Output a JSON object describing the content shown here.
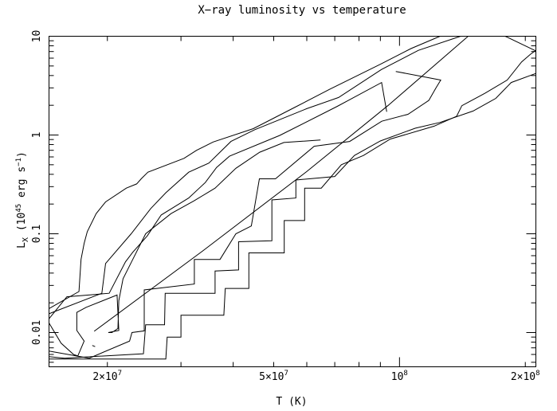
{
  "chart_data": {
    "type": "line",
    "title": "X−ray luminosity vs temperature",
    "xlabel": "T (K)",
    "ylabel": {
      "base": "L",
      "subscript": "X",
      "open": " (10",
      "exp": "45",
      "unit": " erg s",
      "unit_exp": "−1",
      "close": ")"
    },
    "xscale": "log",
    "yscale": "log",
    "xlim": [
      14500000,
      212000000
    ],
    "ylim": [
      0.0045,
      10
    ],
    "x_ticks": [
      {
        "value": 20000000,
        "mantissa": "2×10",
        "exp": "7"
      },
      {
        "value": 50000000,
        "mantissa": "5×10",
        "exp": "7"
      },
      {
        "value": 100000000,
        "mantissa": "10",
        "exp": "8"
      },
      {
        "value": 200000000,
        "mantissa": "2×10",
        "exp": "8"
      }
    ],
    "y_ticks": [
      {
        "value": 0.01,
        "label": "0.01"
      },
      {
        "value": 0.1,
        "label": "0.1"
      },
      {
        "value": 1,
        "label": "1"
      },
      {
        "value": 10,
        "label": "10"
      }
    ],
    "grid": false,
    "legend": "none",
    "series": [
      {
        "points": [
          [
            14500000,
            0.0175
          ],
          [
            17100000,
            0.026
          ],
          [
            17300000,
            0.055
          ],
          [
            17600000,
            0.08
          ],
          [
            17900000,
            0.105
          ],
          [
            18800000,
            0.16
          ],
          [
            19800000,
            0.21
          ],
          [
            22200000,
            0.29
          ],
          [
            23500000,
            0.32
          ],
          [
            24100000,
            0.36
          ],
          [
            25000000,
            0.42
          ],
          [
            30500000,
            0.58
          ],
          [
            32700000,
            0.7
          ],
          [
            35800000,
            0.85
          ],
          [
            44700000,
            1.16
          ],
          [
            55800000,
            1.88
          ],
          [
            68000000,
            2.9
          ],
          [
            90000000,
            5.2
          ],
          [
            106500000,
            7.5
          ],
          [
            125000000,
            10
          ]
        ]
      },
      {
        "points": [
          [
            14500000,
            0.0155
          ],
          [
            19400000,
            0.025
          ],
          [
            19800000,
            0.05
          ],
          [
            22800000,
            0.1
          ],
          [
            25400000,
            0.18
          ],
          [
            27600000,
            0.26
          ],
          [
            31300000,
            0.42
          ],
          [
            35000000,
            0.52
          ],
          [
            39500000,
            0.86
          ],
          [
            45000000,
            1.13
          ],
          [
            60000000,
            1.85
          ],
          [
            71500000,
            2.4
          ],
          [
            90500000,
            4.6
          ],
          [
            111000000,
            7.2
          ],
          [
            140000000,
            10
          ]
        ]
      },
      {
        "points": [
          [
            14500000,
            0.0138
          ],
          [
            16000000,
            0.023
          ],
          [
            20200000,
            0.025
          ],
          [
            22100000,
            0.052
          ],
          [
            23000000,
            0.065
          ],
          [
            24900000,
            0.095
          ],
          [
            26900000,
            0.155
          ],
          [
            31300000,
            0.23
          ],
          [
            34300000,
            0.33
          ],
          [
            36500000,
            0.47
          ],
          [
            39200000,
            0.61
          ],
          [
            51700000,
            0.99
          ],
          [
            71000000,
            1.95
          ],
          [
            90600000,
            3.4
          ],
          [
            93200000,
            1.72
          ]
        ]
      },
      {
        "points": [
          [
            14500000,
            0.0125
          ],
          [
            15500000,
            0.0078
          ],
          [
            16600000,
            0.006
          ],
          [
            17000000,
            0.0058
          ],
          [
            17600000,
            0.0082
          ],
          [
            16900000,
            0.0105
          ],
          [
            16900000,
            0.016
          ],
          [
            17800000,
            0.018
          ],
          [
            21100000,
            0.024
          ],
          [
            21300000,
            0.0105
          ],
          [
            20100000,
            0.01
          ],
          [
            20500000,
            0.01
          ],
          [
            21200000,
            0.011
          ],
          [
            21300000,
            0.021
          ],
          [
            21800000,
            0.035
          ],
          [
            22900000,
            0.053
          ],
          [
            24700000,
            0.1
          ],
          [
            28400000,
            0.16
          ],
          [
            32200000,
            0.215
          ],
          [
            36200000,
            0.29
          ],
          [
            40600000,
            0.46
          ],
          [
            46300000,
            0.67
          ],
          [
            52900000,
            0.84
          ],
          [
            64700000,
            0.89
          ]
        ]
      },
      {
        "points": [
          [
            14500000,
            0.0065
          ],
          [
            18100000,
            0.0055
          ],
          [
            22600000,
            0.0082
          ],
          [
            22900000,
            0.01
          ],
          [
            24500000,
            0.0104
          ],
          [
            24500000,
            0.027
          ],
          [
            32300000,
            0.031
          ],
          [
            32300000,
            0.055
          ],
          [
            37200000,
            0.055
          ],
          [
            40600000,
            0.1
          ],
          [
            44200000,
            0.12
          ],
          [
            46200000,
            0.36
          ],
          [
            50500000,
            0.36
          ],
          [
            62500000,
            0.77
          ],
          [
            76000000,
            0.86
          ],
          [
            90700000,
            1.38
          ],
          [
            104800000,
            1.62
          ],
          [
            117500000,
            2.24
          ],
          [
            122000000,
            2.95
          ],
          [
            125500000,
            3.6
          ],
          [
            98000000,
            4.4
          ]
        ]
      },
      {
        "points": [
          [
            14500000,
            0.0057
          ],
          [
            15800000,
            0.0055
          ],
          [
            24400000,
            0.0061
          ],
          [
            24700000,
            0.012
          ],
          [
            27400000,
            0.012
          ],
          [
            27500000,
            0.025
          ],
          [
            36200000,
            0.025
          ],
          [
            36200000,
            0.042
          ],
          [
            41200000,
            0.043
          ],
          [
            41200000,
            0.083
          ],
          [
            49500000,
            0.085
          ],
          [
            49500000,
            0.22
          ],
          [
            56500000,
            0.23
          ],
          [
            56500000,
            0.35
          ],
          [
            70000000,
            0.38
          ],
          [
            78000000,
            0.62
          ],
          [
            90000000,
            0.87
          ],
          [
            109000000,
            1.17
          ],
          [
            125000000,
            1.34
          ],
          [
            150000000,
            1.75
          ],
          [
            170000000,
            2.35
          ],
          [
            185000000,
            3.4
          ],
          [
            212000000,
            4.2
          ]
        ]
      },
      {
        "points": [
          [
            14500000,
            0.0054
          ],
          [
            27600000,
            0.0054
          ],
          [
            27800000,
            0.009
          ],
          [
            30000000,
            0.009
          ],
          [
            30000000,
            0.015
          ],
          [
            38000000,
            0.015
          ],
          [
            38300000,
            0.028
          ],
          [
            43600000,
            0.028
          ],
          [
            43600000,
            0.064
          ],
          [
            53000000,
            0.064
          ],
          [
            53000000,
            0.136
          ],
          [
            59300000,
            0.136
          ],
          [
            59300000,
            0.29
          ],
          [
            65000000,
            0.29
          ],
          [
            72600000,
            0.5
          ],
          [
            82000000,
            0.62
          ],
          [
            95000000,
            0.91
          ],
          [
            121000000,
            1.23
          ],
          [
            137000000,
            1.55
          ],
          [
            141000000,
            1.98
          ],
          [
            160000000,
            2.64
          ],
          [
            181000000,
            3.6
          ],
          [
            196000000,
            5.5
          ],
          [
            206000000,
            6.6
          ],
          [
            212000000,
            7.2
          ]
        ]
      },
      {
        "points": [
          [
            18600000,
            0.0103
          ],
          [
            33800000,
            0.067
          ],
          [
            59900000,
            0.425
          ],
          [
            94000000,
            2.0
          ],
          [
            146000000,
            10
          ]
        ]
      },
      {
        "points": [
          [
            179000000,
            10
          ],
          [
            212000000,
            7.1
          ]
        ]
      },
      {
        "points": [
          [
            18400000,
            0.0074
          ],
          [
            18700000,
            0.0072
          ]
        ]
      }
    ]
  }
}
